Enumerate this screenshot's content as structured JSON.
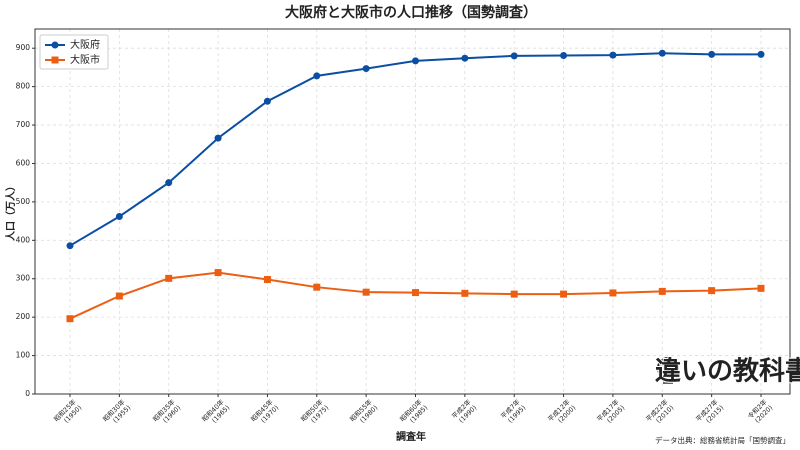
{
  "chart_data": {
    "type": "line",
    "title": "大阪府と大阪市の人口推移（国勢調査）",
    "x_label": "調査年",
    "y_label": "人口（万人）",
    "source": "データ出典：総務省統計局「国勢調査」",
    "watermark": "違いの教科書",
    "categories": [
      "昭和25年\n(1950)",
      "昭和30年\n(1955)",
      "昭和35年\n(1960)",
      "昭和40年\n(1965)",
      "昭和45年\n(1970)",
      "昭和50年\n(1975)",
      "昭和55年\n(1980)",
      "昭和60年\n(1985)",
      "平成2年\n(1990)",
      "平成7年\n(1995)",
      "平成12年\n(2000)",
      "平成17年\n(2005)",
      "平成22年\n(2010)",
      "平成27年\n(2015)",
      "令和2年\n(2020)"
    ],
    "series": [
      {
        "name": "大阪府",
        "color": "#0b4ea2",
        "marker": "circle",
        "values": [
          386,
          462,
          550,
          666,
          762,
          828,
          847,
          867,
          874,
          880,
          881,
          882,
          887,
          884,
          884
        ]
      },
      {
        "name": "大阪市",
        "color": "#ec5f12",
        "marker": "square",
        "values": [
          196,
          255,
          301,
          316,
          298,
          278,
          265,
          264,
          262,
          260,
          260,
          263,
          267,
          269,
          275
        ]
      }
    ],
    "ylim": [
      0,
      950
    ],
    "yticks": [
      0,
      100,
      200,
      300,
      400,
      500,
      600,
      700,
      800,
      900
    ],
    "grid": true,
    "legend": "upper-left"
  }
}
